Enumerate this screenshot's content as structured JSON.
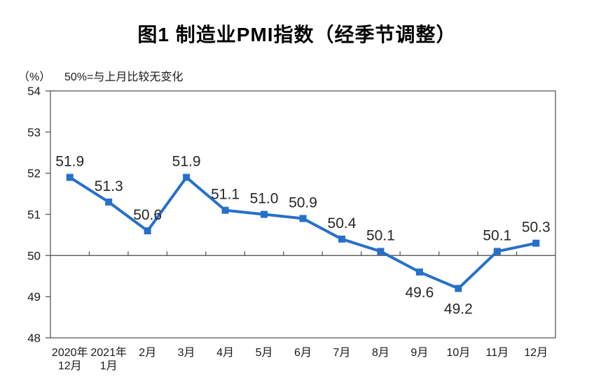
{
  "chart_data": {
    "type": "line",
    "title": "图1 制造业PMI指数（经季节调整）",
    "unit_label": "（%）",
    "note": "50%=与上月比较无变化",
    "categories": [
      [
        "2020年",
        "12月"
      ],
      [
        "2021年",
        "1月"
      ],
      [
        "2月"
      ],
      [
        "3月"
      ],
      [
        "4月"
      ],
      [
        "5月"
      ],
      [
        "6月"
      ],
      [
        "7月"
      ],
      [
        "8月"
      ],
      [
        "9月"
      ],
      [
        "10月"
      ],
      [
        "11月"
      ],
      [
        "12月"
      ]
    ],
    "values": [
      51.9,
      51.3,
      50.6,
      51.9,
      51.1,
      51.0,
      50.9,
      50.4,
      50.1,
      49.6,
      49.2,
      50.1,
      50.3
    ],
    "data_labels": [
      "51.9",
      "51.3",
      "50.6",
      "51.9",
      "51.1",
      "51.0",
      "50.9",
      "50.4",
      "50.1",
      "49.6",
      "49.2",
      "50.1",
      "50.3"
    ],
    "label_positions": [
      "above",
      "above",
      "above",
      "above",
      "above",
      "above",
      "above",
      "above",
      "above",
      "below",
      "below",
      "above",
      "above"
    ],
    "ylim": [
      48,
      54
    ],
    "yticks": [
      54,
      53,
      52,
      51,
      50,
      49,
      48
    ],
    "reference_line": 50,
    "grid": false,
    "legend": "none",
    "marker": "square",
    "colors": {
      "line": "#2670C9",
      "axis": "#595959",
      "text": "#1a1a1a",
      "data_label": "#262626"
    }
  }
}
